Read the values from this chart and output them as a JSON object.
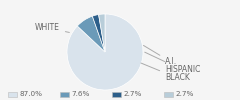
{
  "slices": [
    87.0,
    7.6,
    2.7,
    2.7
  ],
  "labels": [
    "WHITE",
    "A.I.",
    "HISPANIC",
    "BLACK"
  ],
  "colors": [
    "#d9e3ec",
    "#6b9ab8",
    "#2d5f8a",
    "#b8cdd9"
  ],
  "legend_colors": [
    "#d9e3ec",
    "#6b9ab8",
    "#2d5f8a",
    "#b8cdd9"
  ],
  "legend_labels": [
    "87.0%",
    "7.6%",
    "2.7%",
    "2.7%"
  ],
  "startangle": 90,
  "label_fontsize": 5.5,
  "legend_fontsize": 5.2,
  "text_color": "#666666",
  "bg_color": "#f5f5f5"
}
